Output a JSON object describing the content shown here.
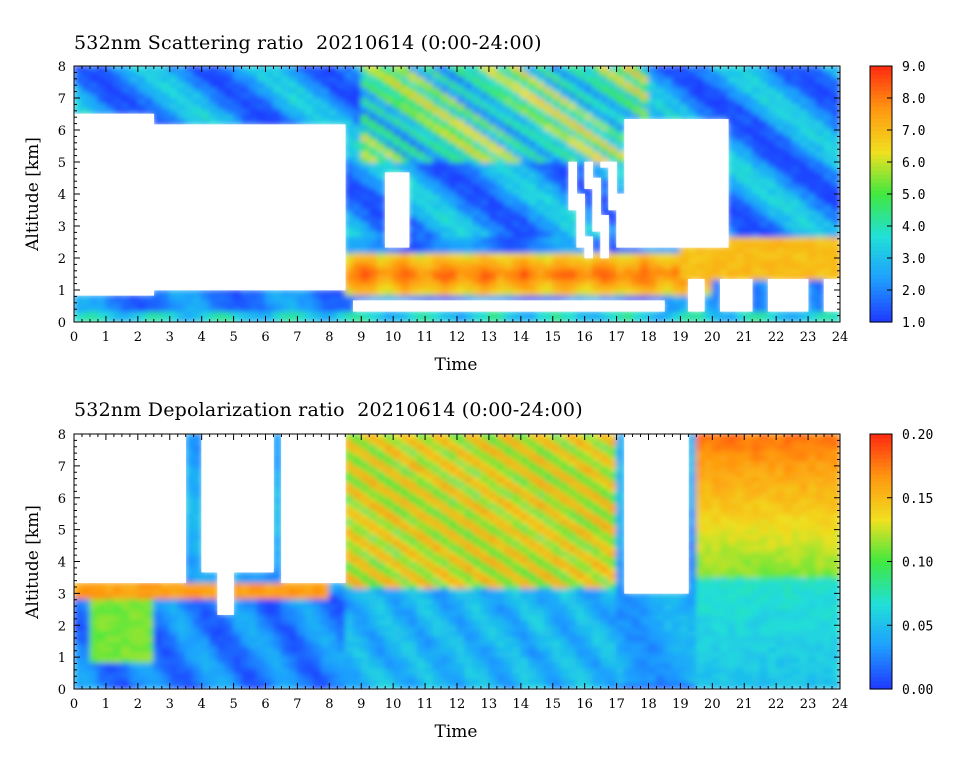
{
  "chart_data": [
    {
      "type": "heatmap",
      "title": "532nm Scattering ratio  20210614 (0:00-24:00)",
      "xlabel": "Time",
      "ylabel": "Altitude [km]",
      "xlim": [
        0,
        24
      ],
      "ylim": [
        0,
        8
      ],
      "x_ticks": [
        "0",
        "1",
        "2",
        "3",
        "4",
        "5",
        "6",
        "7",
        "8",
        "9",
        "10",
        "11",
        "12",
        "13",
        "14",
        "15",
        "16",
        "17",
        "18",
        "19",
        "20",
        "21",
        "22",
        "23",
        "24"
      ],
      "y_ticks": [
        "0",
        "1",
        "2",
        "3",
        "4",
        "5",
        "6",
        "7",
        "8"
      ],
      "colorbar": {
        "range": [
          1.0,
          9.0
        ],
        "ticks": [
          "1.0",
          "2.0",
          "3.0",
          "4.0",
          "5.0",
          "6.0",
          "7.0",
          "8.0",
          "9.0"
        ]
      },
      "colormap": [
        "#1f3cff",
        "#1fa0ff",
        "#20e0d8",
        "#40e840",
        "#f0e020",
        "#ff9a10",
        "#ff3010"
      ],
      "features": {
        "bottom_layer_top_km": 0.3,
        "low_cloud_base_km": 0.7,
        "boundary_layer_top_km": 2.5,
        "upper_blue_region_km": [
          2.5,
          8.0
        ]
      }
    },
    {
      "type": "heatmap",
      "title": "532nm Depolarization ratio  20210614 (0:00-24:00)",
      "xlabel": "Time",
      "ylabel": "Altitude [km]",
      "xlim": [
        0,
        24
      ],
      "ylim": [
        0,
        8
      ],
      "x_ticks": [
        "0",
        "1",
        "2",
        "3",
        "4",
        "5",
        "6",
        "7",
        "8",
        "9",
        "10",
        "11",
        "12",
        "13",
        "14",
        "15",
        "16",
        "17",
        "18",
        "19",
        "20",
        "21",
        "22",
        "23",
        "24"
      ],
      "y_ticks": [
        "0",
        "1",
        "2",
        "3",
        "4",
        "5",
        "6",
        "7",
        "8"
      ],
      "colorbar": {
        "range": [
          0.0,
          0.2
        ],
        "ticks": [
          "0.00",
          "0.05",
          "0.10",
          "0.15",
          "0.20"
        ]
      },
      "colormap": [
        "#1f3cff",
        "#1fa0ff",
        "#20e0d8",
        "#40e840",
        "#f0e020",
        "#ff9a10",
        "#ff3010"
      ]
    }
  ]
}
